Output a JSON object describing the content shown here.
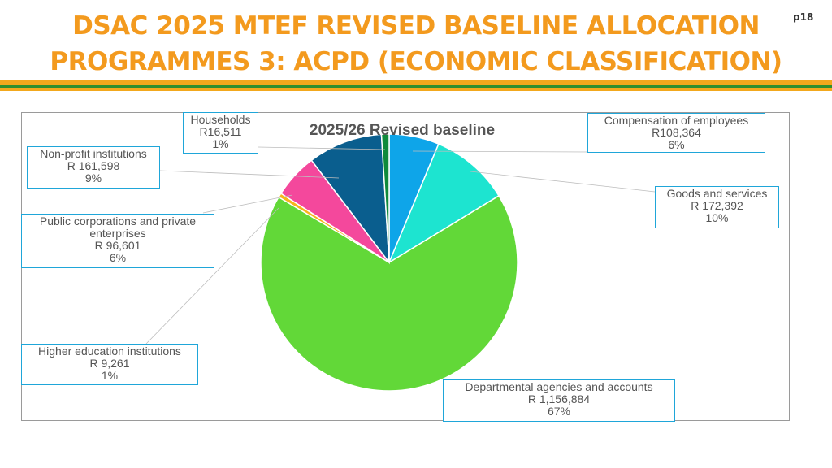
{
  "header": {
    "title_line1": "DSAC 2025 MTEF REVISED BASELINE ALLOCATION",
    "title_line2": "PROGRAMMES 3: ACPD (ECONOMIC CLASSIFICATION)",
    "page_number": "p18"
  },
  "colors": {
    "title": "#F39A1E",
    "stripe_gold": "#F2A81D",
    "stripe_green": "#2F8F2F",
    "label_border": "#1FA6D9"
  },
  "chart_data": {
    "type": "pie",
    "title": "2025/26 Revised baseline",
    "slices": [
      {
        "name": "Compensation of employees",
        "value": 108364,
        "value_label": "R108,364",
        "pct_label": "6%",
        "color": "#0EA5E9"
      },
      {
        "name": "Goods and services",
        "value": 172392,
        "value_label": "R 172,392",
        "pct_label": "10%",
        "color": "#1DE4D0"
      },
      {
        "name": "Departmental agencies and accounts",
        "value": 1156884,
        "value_label": "R 1,156,884",
        "pct_label": "67%",
        "color": "#62D838"
      },
      {
        "name": "Higher education institutions",
        "value": 9261,
        "value_label": "R 9,261",
        "pct_label": "1%",
        "color": "#F6B51B"
      },
      {
        "name": "Public corporations and private enterprises",
        "name_lines": [
          "Public corporations and private",
          "enterprises"
        ],
        "value": 96601,
        "value_label": "R 96,601",
        "pct_label": "6%",
        "color": "#F4489C"
      },
      {
        "name": "Non-profit institutions",
        "value": 161598,
        "value_label": "R 161,598",
        "pct_label": "9%",
        "color": "#0A5E8E"
      },
      {
        "name": "Households",
        "value": 16511,
        "value_label": "R16,511",
        "pct_label": "1%",
        "color": "#0F8A3C"
      }
    ]
  }
}
